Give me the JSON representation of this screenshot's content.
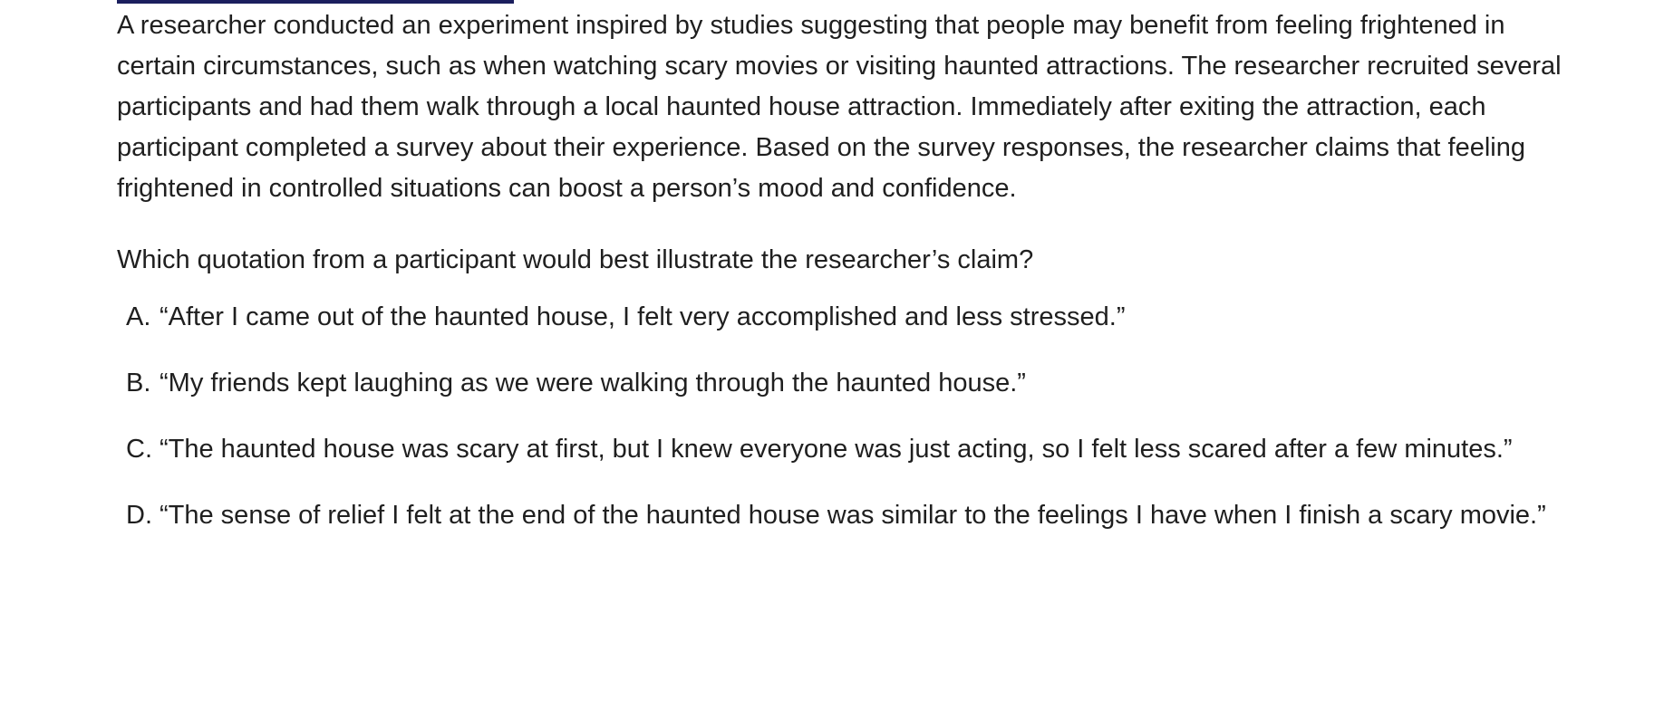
{
  "passage": {
    "text": "A researcher conducted an experiment inspired by studies suggesting that people may benefit from feeling frightened in certain circumstances, such as when watching scary movies or visiting haunted attractions. The researcher recruited several participants and had them walk through a local haunted house attraction. Immediately after exiting the attraction, each participant completed a survey about their experience. Based on the survey responses, the researcher claims that feeling frightened in controlled situations can boost a person’s mood and confidence."
  },
  "question": {
    "text": "Which quotation from a participant would best illustrate the researcher’s claim?"
  },
  "choices": [
    {
      "letter": "A.",
      "text": "“After I came out of the haunted house, I felt very accomplished and less stressed.”"
    },
    {
      "letter": "B.",
      "text": "“My friends kept laughing as we were walking through the haunted house.”"
    },
    {
      "letter": "C.",
      "text": "“The haunted house was scary at first, but I knew everyone was just acting, so I felt less scared after a few minutes.”"
    },
    {
      "letter": "D.",
      "text": "“The sense of relief I felt at the end of the haunted house was similar to the feelings I have when I finish a scary movie.”"
    }
  ],
  "colors": {
    "text": "#1f1f1f",
    "accent_rule": "#1b1f5e"
  }
}
